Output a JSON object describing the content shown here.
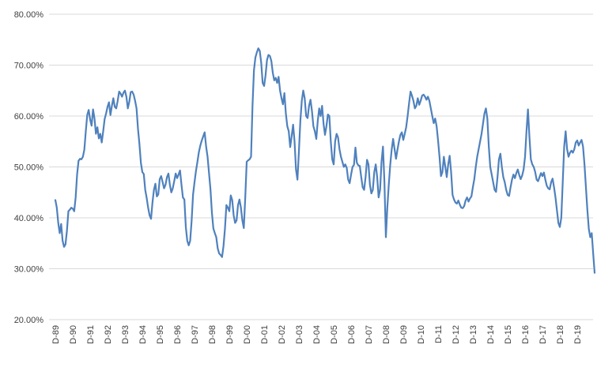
{
  "chart_data": {
    "type": "line",
    "title": "",
    "legend": "none",
    "grid": "horizontal-only",
    "line_color": "#4f81bd",
    "line_width": 2.2,
    "grid_color": "#d9d9d9",
    "label_color": "#404040",
    "background_color": "#ffffff",
    "frequency": "monthly",
    "y_axis": {
      "min": 20,
      "max": 80,
      "step": 10,
      "tick_labels": [
        "20.00%",
        "30.00%",
        "40.00%",
        "50.00%",
        "60.00%",
        "70.00%",
        "80.00%"
      ]
    },
    "x_axis": {
      "tick_labels": [
        "D-89",
        "D-90",
        "D-91",
        "D-92",
        "D-93",
        "D-94",
        "D-95",
        "D-96",
        "D-97",
        "D-98",
        "D-99",
        "D-00",
        "D-01",
        "D-02",
        "D-03",
        "D-04",
        "D-05",
        "D-06",
        "D-07",
        "D-08",
        "D-09",
        "D-10",
        "D-11",
        "D-12",
        "D-13",
        "D-14",
        "D-15",
        "D-16",
        "D-17",
        "D-18",
        "D-19"
      ],
      "months_per_label": 12,
      "label_rotation_deg": -90
    },
    "values_unit": "percent",
    "values": [
      43.5,
      42.0,
      39.0,
      37.0,
      38.8,
      35.5,
      34.3,
      34.8,
      37.5,
      41.3,
      41.6,
      42.0,
      41.8,
      41.3,
      44.0,
      48.5,
      51.2,
      51.6,
      51.5,
      52.0,
      53.4,
      57.0,
      60.2,
      61.2,
      59.3,
      58.1,
      61.3,
      59.5,
      56.5,
      57.8,
      55.6,
      56.5,
      54.8,
      57.0,
      59.4,
      60.5,
      61.8,
      62.7,
      60.2,
      62.0,
      63.5,
      61.8,
      61.5,
      63.0,
      64.8,
      64.4,
      63.8,
      64.6,
      65.0,
      63.8,
      61.5,
      62.8,
      64.7,
      64.8,
      64.2,
      63.0,
      61.5,
      57.5,
      54.5,
      50.8,
      49.0,
      48.6,
      45.5,
      43.9,
      42.0,
      40.5,
      39.8,
      43.0,
      45.5,
      46.7,
      44.2,
      44.6,
      47.6,
      48.2,
      47.0,
      45.8,
      46.5,
      48.0,
      48.7,
      46.5,
      45.0,
      45.8,
      47.2,
      48.7,
      47.8,
      48.5,
      49.3,
      46.5,
      44.0,
      43.6,
      38.2,
      35.5,
      34.6,
      35.5,
      39.4,
      44.6,
      47.0,
      49.2,
      51.0,
      52.9,
      54.2,
      55.2,
      56.0,
      56.8,
      54.0,
      52.0,
      48.8,
      45.6,
      41.0,
      37.9,
      37.0,
      36.2,
      34.0,
      33.0,
      32.7,
      32.3,
      34.5,
      37.9,
      42.5,
      42.0,
      41.3,
      44.4,
      43.5,
      40.5,
      39.0,
      39.5,
      42.5,
      43.6,
      42.0,
      39.5,
      38.0,
      44.0,
      51.0,
      51.3,
      51.5,
      52.0,
      62.0,
      69.0,
      71.5,
      72.5,
      73.3,
      72.8,
      70.5,
      66.5,
      65.9,
      68.0,
      71.0,
      72.0,
      71.8,
      70.8,
      68.5,
      67.0,
      67.5,
      66.5,
      67.7,
      65.0,
      63.5,
      62.3,
      64.5,
      60.5,
      58.0,
      57.0,
      53.9,
      56.0,
      58.3,
      55.0,
      49.5,
      47.5,
      53.0,
      59.0,
      63.0,
      65.0,
      63.5,
      60.0,
      59.6,
      62.0,
      63.2,
      61.0,
      58.0,
      57.0,
      55.5,
      59.0,
      61.5,
      60.0,
      62.0,
      58.5,
      56.3,
      58.0,
      60.3,
      60.0,
      55.0,
      51.5,
      50.5,
      55.0,
      56.5,
      55.8,
      53.5,
      52.0,
      51.0,
      50.0,
      50.5,
      49.8,
      47.5,
      46.8,
      48.5,
      50.0,
      50.4,
      53.8,
      50.8,
      50.3,
      50.2,
      48.0,
      46.0,
      45.5,
      48.0,
      51.4,
      50.5,
      46.5,
      44.8,
      45.5,
      49.0,
      50.5,
      48.0,
      44.0,
      45.5,
      51.0,
      54.0,
      47.0,
      36.2,
      42.0,
      46.5,
      50.4,
      53.4,
      55.5,
      53.5,
      51.6,
      53.4,
      55.0,
      56.3,
      56.8,
      55.3,
      56.5,
      57.8,
      60.0,
      62.5,
      64.8,
      64.0,
      63.0,
      61.5,
      62.0,
      63.5,
      62.2,
      63.0,
      64.0,
      64.2,
      63.8,
      63.2,
      63.8,
      63.0,
      61.5,
      60.0,
      58.6,
      59.5,
      58.0,
      55.2,
      52.0,
      48.2,
      49.0,
      52.0,
      50.0,
      48.0,
      50.5,
      52.2,
      49.0,
      44.5,
      43.6,
      43.0,
      42.8,
      43.4,
      42.6,
      42.0,
      41.9,
      42.3,
      43.4,
      44.0,
      43.2,
      43.8,
      44.2,
      46.0,
      47.6,
      50.0,
      52.0,
      53.5,
      55.0,
      56.5,
      58.5,
      60.5,
      61.5,
      59.5,
      54.0,
      50.0,
      48.5,
      47.0,
      45.5,
      45.1,
      48.0,
      51.5,
      52.6,
      50.0,
      48.0,
      47.0,
      45.5,
      44.5,
      44.3,
      46.0,
      47.5,
      48.5,
      47.8,
      48.8,
      49.5,
      48.4,
      47.6,
      48.3,
      49.5,
      52.0,
      57.0,
      61.3,
      56.0,
      51.5,
      50.5,
      50.0,
      49.0,
      47.5,
      47.2,
      48.0,
      48.8,
      48.2,
      48.9,
      47.5,
      46.3,
      45.8,
      45.6,
      47.0,
      47.7,
      46.0,
      44.0,
      41.5,
      39.0,
      38.2,
      40.0,
      47.0,
      54.0,
      57.0,
      53.5,
      52.0,
      52.8,
      53.2,
      52.8,
      53.5,
      54.8,
      55.2,
      54.2,
      54.8,
      55.3,
      54.0,
      50.5,
      46.0,
      41.5,
      37.8,
      36.2,
      37.0,
      33.0,
      29.2
    ]
  }
}
